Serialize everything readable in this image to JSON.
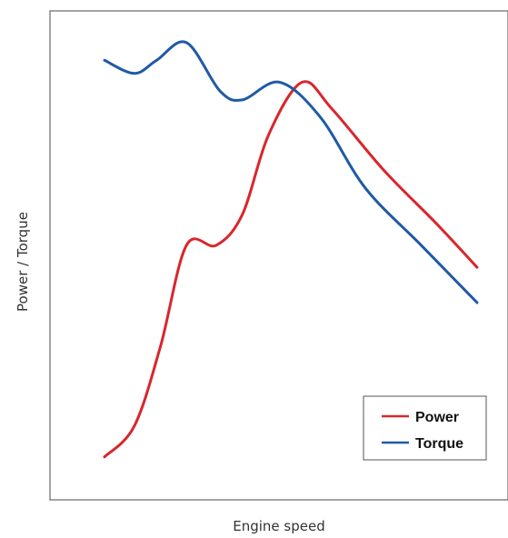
{
  "chart_data": {
    "type": "line",
    "title": "",
    "xlabel": "Engine speed",
    "ylabel": "Power / Torque",
    "xlim": [
      0,
      100
    ],
    "ylim": [
      0,
      100
    ],
    "grid": false,
    "legend_position": "bottom-right",
    "series": [
      {
        "name": "Power",
        "color": "#d9262c",
        "points": [
          [
            0,
            5
          ],
          [
            8,
            12
          ],
          [
            15,
            30
          ],
          [
            22,
            53
          ],
          [
            30,
            53
          ],
          [
            37,
            60
          ],
          [
            44,
            78
          ],
          [
            53,
            90
          ],
          [
            61,
            84
          ],
          [
            75,
            70
          ],
          [
            89,
            58
          ],
          [
            100,
            48
          ]
        ]
      },
      {
        "name": "Torque",
        "color": "#1f5aa6",
        "points": [
          [
            0,
            95
          ],
          [
            8,
            92
          ],
          [
            14,
            95
          ],
          [
            22,
            99
          ],
          [
            31,
            88
          ],
          [
            37,
            86
          ],
          [
            47,
            90
          ],
          [
            58,
            82
          ],
          [
            70,
            66
          ],
          [
            85,
            53
          ],
          [
            100,
            40
          ]
        ]
      }
    ]
  }
}
